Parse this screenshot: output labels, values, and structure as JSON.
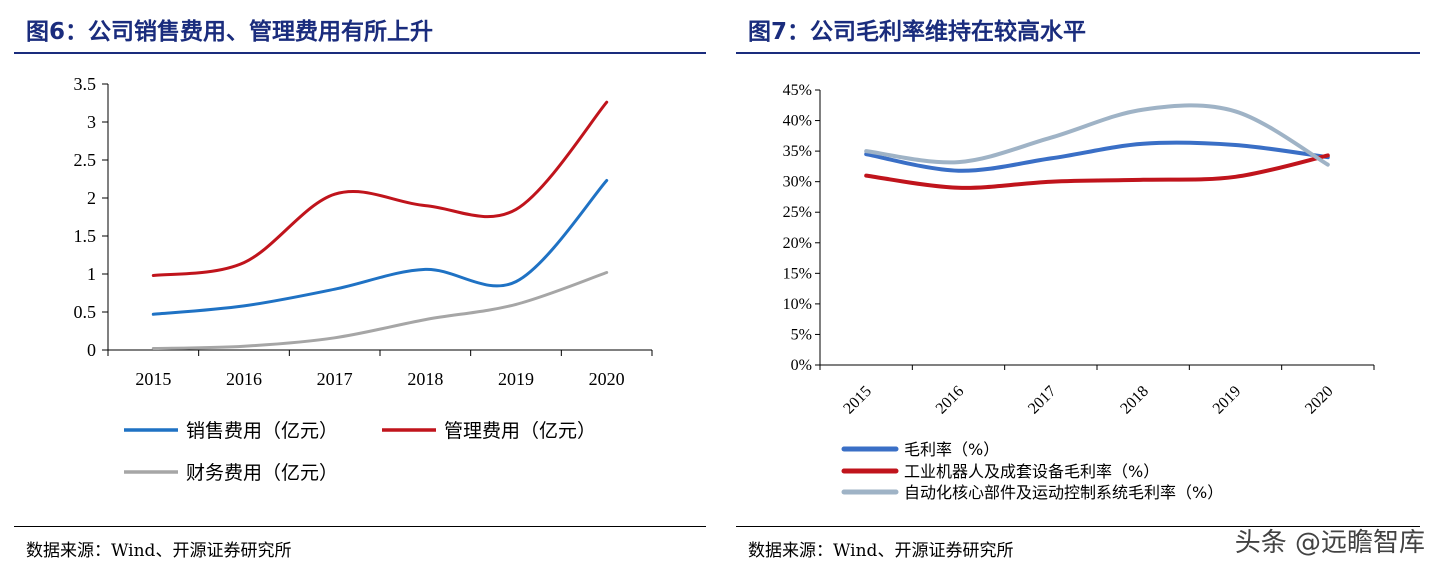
{
  "left": {
    "title": "图6：公司销售费用、管理费用有所上升",
    "source": "数据来源：Wind、开源证券研究所"
  },
  "right": {
    "title": "图7：公司毛利率维持在较高水平",
    "source": "数据来源：Wind、开源证券研究所"
  },
  "watermark": "头条 @远瞻智库",
  "chart_data": [
    {
      "type": "line",
      "title": "图6：公司销售费用、管理费用有所上升",
      "categories": [
        "2015",
        "2016",
        "2017",
        "2018",
        "2019",
        "2020"
      ],
      "y_ticks": [
        "0",
        "0.5",
        "1",
        "1.5",
        "2",
        "2.5",
        "3",
        "3.5"
      ],
      "ylim": [
        0,
        3.5
      ],
      "series": [
        {
          "name": "销售费用（亿元）",
          "color": "#1f72c4",
          "values": [
            0.47,
            0.58,
            0.8,
            1.06,
            0.9,
            2.23
          ]
        },
        {
          "name": "管理费用（亿元）",
          "color": "#c0141c",
          "values": [
            0.98,
            1.15,
            2.05,
            1.9,
            1.85,
            3.26
          ]
        },
        {
          "name": "财务费用（亿元）",
          "color": "#a6a6a6",
          "values": [
            0.02,
            0.05,
            0.16,
            0.4,
            0.6,
            1.02
          ]
        }
      ]
    },
    {
      "type": "line",
      "title": "图7：公司毛利率维持在较高水平",
      "categories": [
        "2015",
        "2016",
        "2017",
        "2018",
        "2019",
        "2020"
      ],
      "y_ticks": [
        "0%",
        "5%",
        "10%",
        "15%",
        "20%",
        "25%",
        "30%",
        "35%",
        "40%",
        "45%"
      ],
      "ylim": [
        0,
        45
      ],
      "series": [
        {
          "name": "毛利率（%）",
          "color": "#3a6fc6",
          "values": [
            34.5,
            31.8,
            33.8,
            36.2,
            36.0,
            34.0
          ]
        },
        {
          "name": "工业机器人及成套设备毛利率（%）",
          "color": "#c0141c",
          "values": [
            31.0,
            29.0,
            30.0,
            30.3,
            30.8,
            34.3
          ]
        },
        {
          "name": "自动化核心部件及运动控制系统毛利率（%）",
          "color": "#9fb3c6",
          "values": [
            35.0,
            33.2,
            37.2,
            41.8,
            41.5,
            32.8
          ]
        }
      ]
    }
  ]
}
